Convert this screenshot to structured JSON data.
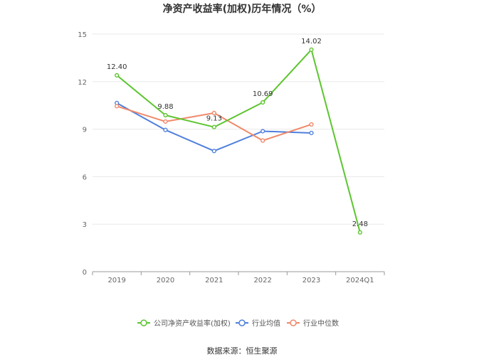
{
  "chart_data": {
    "type": "line",
    "title": "净资产收益率(加权)历年情况（%）",
    "categories": [
      "2019",
      "2020",
      "2021",
      "2022",
      "2023",
      "2024Q1"
    ],
    "ylim": [
      0,
      15
    ],
    "yticks": [
      0,
      3,
      6,
      9,
      12,
      15
    ],
    "grid": true,
    "legend_position": "bottom",
    "series": [
      {
        "name": "公司净资产收益率(加权)",
        "color": "#5cc52f",
        "values": [
          12.4,
          9.88,
          9.13,
          10.69,
          14.02,
          2.48
        ],
        "labels": [
          "12.40",
          "9.88",
          "9.13",
          "10.69",
          "14.02",
          "2.48"
        ]
      },
      {
        "name": "行业均值",
        "color": "#4f7fdc",
        "values": [
          10.65,
          8.95,
          7.62,
          8.87,
          8.76,
          null
        ]
      },
      {
        "name": "行业中位数",
        "color": "#f0896a",
        "values": [
          10.45,
          9.48,
          10.02,
          8.28,
          9.3,
          null
        ]
      }
    ]
  },
  "source": "数据来源：恒生聚源"
}
